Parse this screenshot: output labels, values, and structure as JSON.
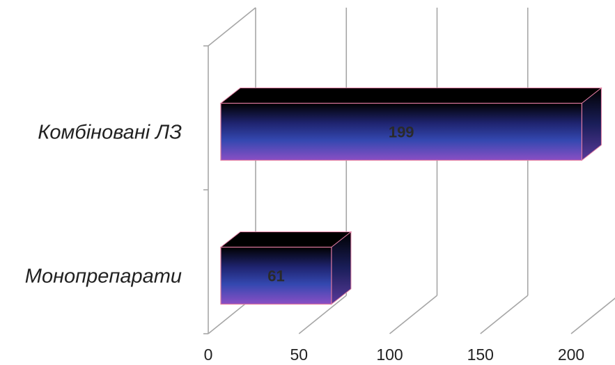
{
  "chart_data": {
    "type": "bar",
    "orientation": "horizontal",
    "style": "3d",
    "categories": [
      "Монопрепарати",
      "Комбіновані ЛЗ"
    ],
    "values": [
      61,
      199
    ],
    "xlim": [
      0,
      200
    ],
    "xticks": [
      "0",
      "50",
      "100",
      "150",
      "200"
    ],
    "data_labels": [
      "61",
      "199"
    ],
    "grid": true,
    "legend": "none",
    "colors": {
      "bar_top": "#000000",
      "bar_mid": "#2e3a9a",
      "bar_bottom": "#8a4fc4",
      "bar_edge": "#e07aa0",
      "grid": "#a6a6a6"
    }
  }
}
